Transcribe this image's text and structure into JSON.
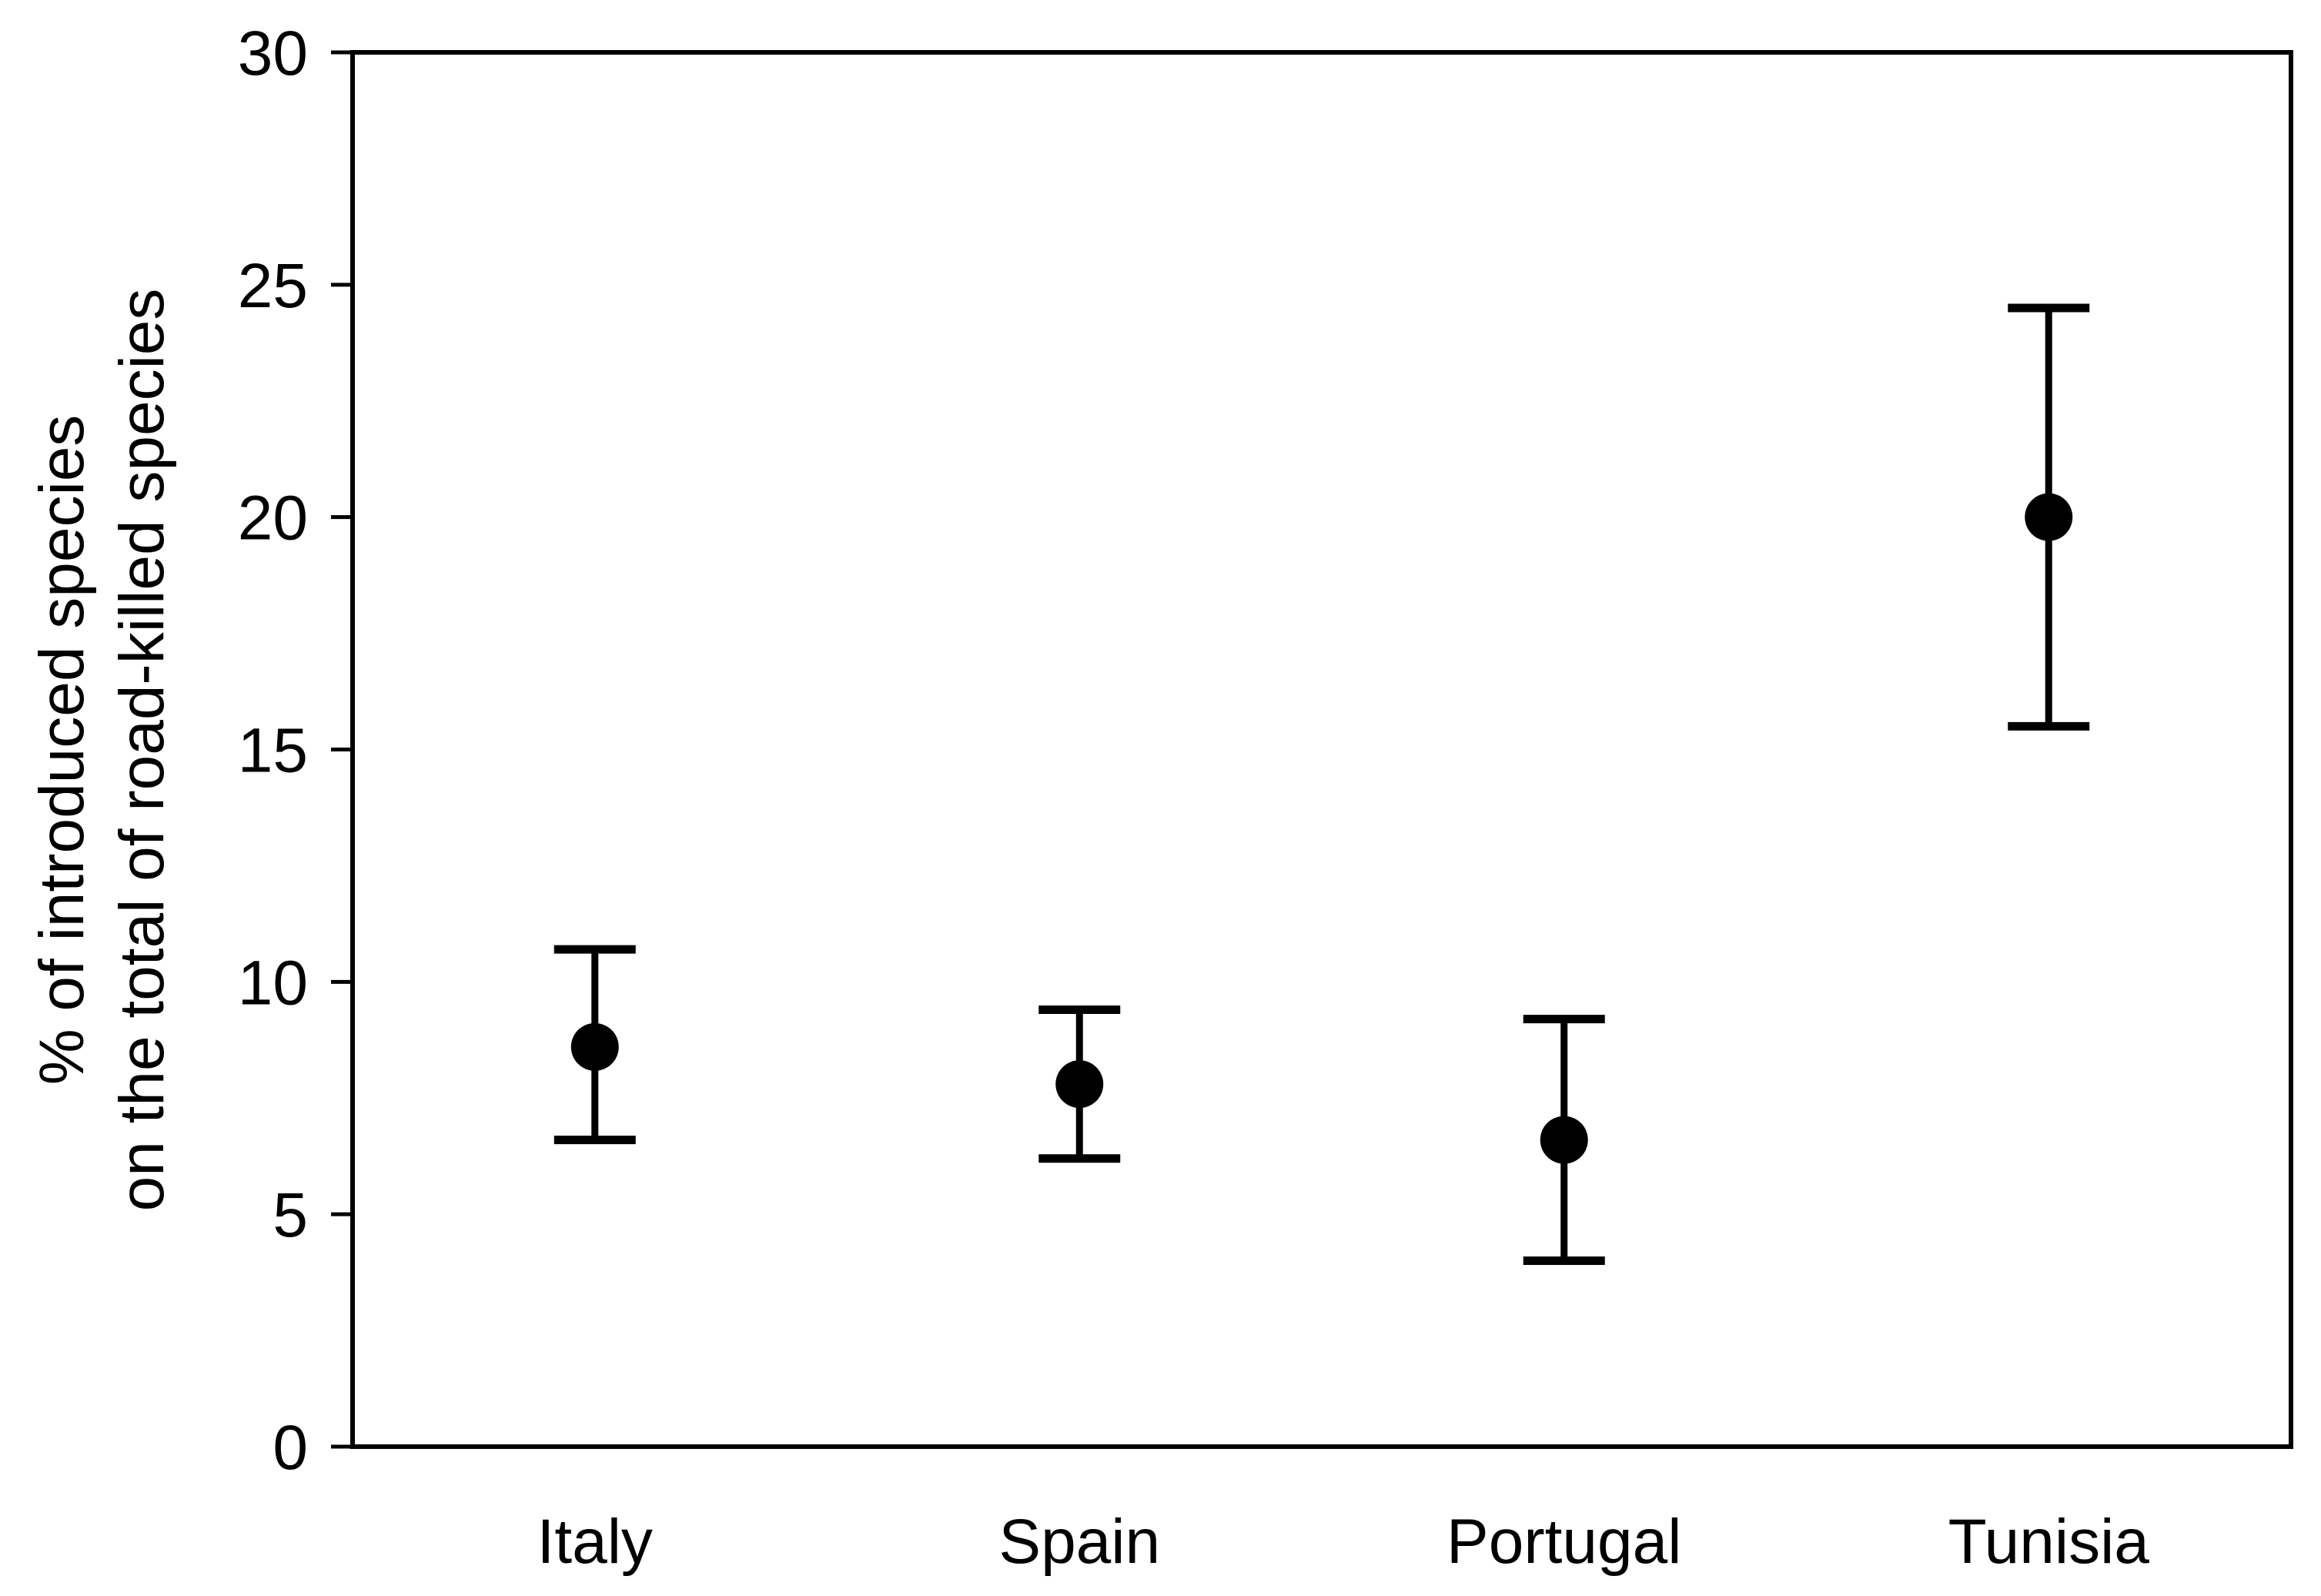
{
  "figure": {
    "background": "#ffffff",
    "ink_color": "#000000"
  },
  "chart_data": {
    "type": "scatter",
    "subtype": "point-estimates-with-error-bars",
    "title": "",
    "categories": [
      "Italy",
      "Spain",
      "Portugal",
      "Tunisia"
    ],
    "series": [
      {
        "name": "% of introduced species on the total of road-killed species",
        "means": [
          8.6,
          7.8,
          6.6,
          20.0
        ],
        "ci_low": [
          6.6,
          6.2,
          4.0,
          15.5
        ],
        "ci_high": [
          10.7,
          9.4,
          9.2,
          24.5
        ]
      }
    ],
    "xlabel": "",
    "ylabel_line1": "% of introduced species",
    "ylabel_line2": "on the total of road-killed species",
    "ylim": [
      0,
      30
    ],
    "yticks": [
      0,
      5,
      10,
      15,
      20,
      25,
      30
    ],
    "grid": false,
    "legend": false,
    "frame": true,
    "marker": "filled-circle",
    "marker_color": "#000000",
    "error_bar_style": "caps"
  }
}
